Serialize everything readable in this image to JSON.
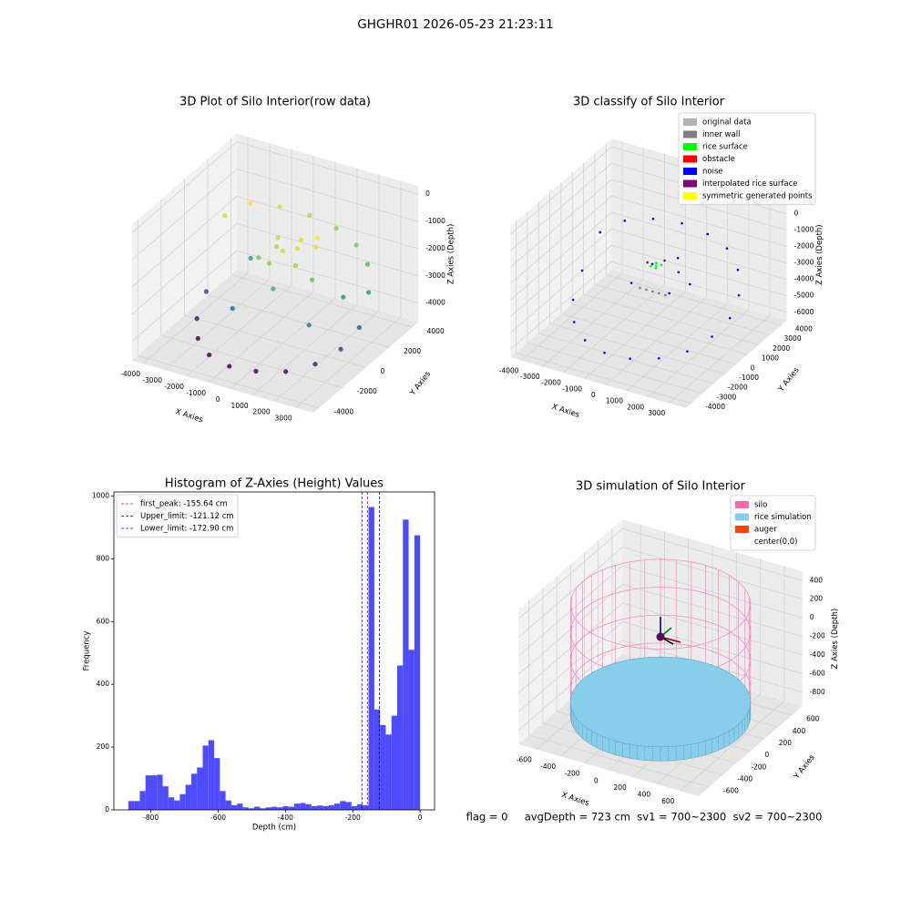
{
  "title": "GHGHR01 2026-05-23 21:23:11",
  "chart_data": [
    {
      "type": "scatter3d",
      "title": "3D Plot of Silo Interior(row data)",
      "xlabel": "X Axies",
      "ylabel": "Y Axies",
      "zlabel": "Z Axies (Depth)",
      "colormap": "viridis",
      "xlim": [
        -4500,
        3800
      ],
      "ylim": [
        -4500,
        4500
      ],
      "zlim": [
        -4700,
        300
      ],
      "xticks": [
        -4000,
        -3000,
        -2000,
        -1000,
        0,
        1000,
        2000,
        3000
      ],
      "yticks": [
        -4000,
        -2000,
        0,
        2000,
        4000
      ],
      "zticks": [
        -4000,
        -3000,
        -2000,
        -1000,
        0
      ],
      "x": [
        3500,
        3289,
        2681,
        1750,
        608,
        -608,
        -1750,
        -2681,
        -3289,
        -3500,
        -3289,
        -2681,
        -1750,
        -608,
        608,
        1750,
        2681,
        3289,
        0,
        500,
        -500,
        800,
        -300,
        1200,
        -1000,
        300,
        1500,
        -700,
        200,
        1000,
        2000,
        -1500,
        2500,
        -2000
      ],
      "y": [
        0,
        1197,
        2250,
        3031,
        3447,
        3447,
        3031,
        2250,
        1197,
        0,
        -1197,
        -2250,
        -3031,
        -3447,
        -3447,
        -3031,
        -2250,
        -1197,
        0,
        300,
        400,
        -400,
        -600,
        600,
        -200,
        1000,
        -300,
        900,
        -1200,
        1100,
        -1500,
        -1500,
        500,
        1000
      ],
      "z": [
        -3300,
        -2500,
        -2000,
        -1800,
        -1600,
        -1400,
        -1200,
        -1000,
        -1200,
        -3600,
        -4100,
        -4300,
        -4400,
        -4400,
        -4300,
        -4200,
        -4000,
        -3700,
        -1300,
        -1200,
        -1400,
        -1500,
        -1600,
        -1100,
        -1700,
        -1200,
        -1900,
        -1300,
        -2200,
        -1000,
        -3000,
        -3200,
        -2600,
        -2400
      ]
    },
    {
      "type": "scatter3d",
      "title": "3D classify of Silo Interior",
      "xlabel": "X Axies",
      "ylabel": "Y Axies",
      "zlabel": "Z Axies (Depth)",
      "legend": "upper right",
      "xlim": [
        -4500,
        3800
      ],
      "ylim": [
        -4500,
        4500
      ],
      "zlim": [
        -6500,
        1500
      ],
      "xticks": [
        -4000,
        -3000,
        -2000,
        -1000,
        0,
        1000,
        2000,
        3000
      ],
      "yticks": [
        -4000,
        -3000,
        -2000,
        -1000,
        0,
        1000,
        2000,
        3000,
        4000
      ],
      "zticks": [
        -6000,
        -5000,
        -4000,
        -3000,
        -2000,
        -1000,
        0,
        1000
      ],
      "series": [
        {
          "name": "original data",
          "color": "#b3b3b3",
          "x": [],
          "y": [],
          "z": []
        },
        {
          "name": "inner wall",
          "color": "#808080",
          "x": [
            -600,
            -300,
            0,
            300,
            600
          ],
          "y": [
            -300,
            -300,
            -300,
            -300,
            -300
          ],
          "z": [
            -3300,
            -3300,
            -3300,
            -3300,
            -3300
          ]
        },
        {
          "name": "rice surface",
          "color": "#00ff00",
          "x": [
            0,
            200,
            -200,
            100,
            -100
          ],
          "y": [
            0,
            100,
            -100,
            -200,
            200
          ],
          "z": [
            -1900,
            -1850,
            -1950,
            -1900,
            -1900
          ]
        },
        {
          "name": "obstacle",
          "color": "#ff0000",
          "x": [],
          "y": [],
          "z": []
        },
        {
          "name": "noise",
          "color": "#0000ff",
          "x": [
            3500,
            3289,
            2681,
            1750,
            608,
            -608,
            -1750,
            -2681,
            -3289,
            -3500,
            -3289,
            -2681,
            -1750,
            -608,
            608,
            1750,
            2681,
            3289,
            800,
            -600,
            1000,
            -900,
            400,
            1500
          ],
          "y": [
            0,
            1197,
            2250,
            3031,
            3447,
            3447,
            3031,
            2250,
            1197,
            0,
            -1197,
            -2250,
            -3031,
            -3447,
            -3447,
            -3031,
            -2250,
            -1197,
            500,
            800,
            -700,
            -500,
            1200,
            200
          ],
          "z": [
            -3800,
            -3200,
            -2500,
            -2000,
            -1800,
            -1600,
            -1500,
            -1500,
            -1800,
            -3500,
            -4500,
            -5000,
            -5300,
            -5400,
            -5300,
            -5100,
            -4800,
            -4300,
            -2300,
            -2500,
            -2800,
            -3000,
            -2000,
            -2600
          ]
        },
        {
          "name": "interpolated rice surface",
          "color": "#800080",
          "x": [
            300,
            -300
          ],
          "y": [
            200,
            -200
          ],
          "z": [
            -1600,
            -1700
          ]
        },
        {
          "name": "symmetric generated points",
          "color": "#ffff00",
          "x": [],
          "y": [],
          "z": []
        }
      ]
    },
    {
      "type": "histogram",
      "title": "Histogram of Z-Axies (Height) Values",
      "xlabel": "Depth (cm)",
      "ylabel": "Frequency",
      "color": "#4d4dff",
      "legend": "upper left",
      "xlim": [
        -910,
        43
      ],
      "ylim": [
        0,
        1013
      ],
      "xticks": [
        -800,
        -600,
        -400,
        -200,
        0
      ],
      "yticks": [
        0,
        200,
        400,
        600,
        800,
        1000
      ],
      "bins": [
        -867,
        -850,
        -833,
        -816,
        -799,
        -782,
        -765,
        -748,
        -731,
        -714,
        -697,
        -680,
        -663,
        -646,
        -629,
        -612,
        -595,
        -578,
        -561,
        -544,
        -527,
        -510,
        -493,
        -476,
        -459,
        -442,
        -425,
        -408,
        -391,
        -374,
        -357,
        -340,
        -323,
        -306,
        -289,
        -272,
        -255,
        -238,
        -221,
        -204,
        -187,
        -170,
        -153,
        -136,
        -119,
        -102,
        -85,
        -68,
        -51,
        -34,
        -17,
        0
      ],
      "counts": [
        28,
        28,
        60,
        110,
        110,
        112,
        75,
        40,
        30,
        50,
        80,
        115,
        135,
        205,
        222,
        165,
        60,
        30,
        15,
        20,
        8,
        5,
        10,
        5,
        8,
        10,
        8,
        12,
        10,
        20,
        22,
        18,
        12,
        14,
        12,
        15,
        20,
        28,
        25,
        12,
        18,
        15,
        965,
        320,
        270,
        240,
        300,
        460,
        925,
        510,
        875
      ],
      "lines": [
        {
          "name": "first_peak: -155.64 cm",
          "value": -155.64,
          "color": "#ff0000"
        },
        {
          "name": "Upper_limit: -121.12 cm",
          "value": -121.12,
          "color": "#00008b"
        },
        {
          "name": "Lower_limit: -172.90 cm",
          "value": -172.9,
          "color": "#0000ff"
        }
      ]
    },
    {
      "type": "surface3d",
      "title": "3D simulation of Silo Interior",
      "xlabel": "X Axies",
      "ylabel": "Y Axies",
      "zlabel": "Z Axies (Depth)",
      "legend": "upper right",
      "xlim": [
        -750,
        750
      ],
      "ylim": [
        -750,
        750
      ],
      "zlim": [
        -950,
        500
      ],
      "xticks": [
        -600,
        -400,
        -200,
        0,
        200,
        400,
        600
      ],
      "yticks": [
        -600,
        -400,
        -200,
        0,
        200,
        400,
        600
      ],
      "zticks": [
        -800,
        -600,
        -400,
        -200,
        0,
        200,
        400
      ],
      "series": [
        {
          "name": "silo",
          "color": "#ff69b4",
          "radius": 650,
          "z": [
            -850,
            350
          ]
        },
        {
          "name": "rice simulation",
          "color": "#87ceeb",
          "radius": 650,
          "z": -700
        },
        {
          "name": "auger",
          "color": "#ff4500"
        },
        {
          "name": "center(0,0)",
          "color": "#ffffff",
          "x": [
            0
          ],
          "y": [
            0
          ],
          "z": [
            0
          ]
        }
      ],
      "annotations": [
        "flag = 0     avgDepth = 723 cm  sv1 = 700~2300  sv2 = 700~2300"
      ]
    }
  ]
}
